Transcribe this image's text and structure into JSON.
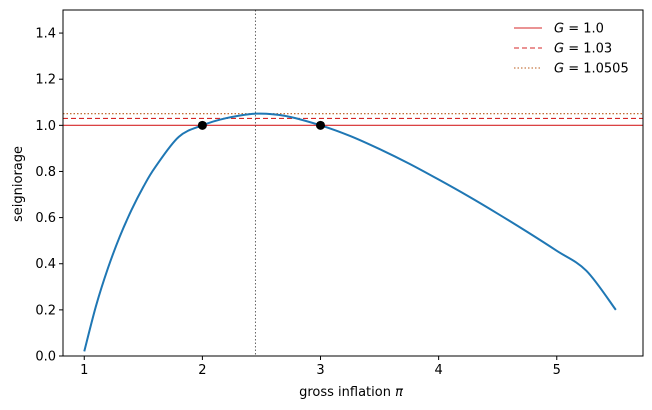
{
  "chart_data": {
    "type": "line",
    "title": "",
    "xlabel": "gross inflation π",
    "ylabel": "seigniorage",
    "xlim": [
      0.82,
      5.73
    ],
    "ylim": [
      0.0,
      1.5
    ],
    "x_ticks": [
      1,
      2,
      3,
      4,
      5
    ],
    "y_ticks": [
      0.0,
      0.2,
      0.4,
      0.6,
      0.8,
      1.0,
      1.2,
      1.4
    ],
    "grid": false,
    "legend_position": "top-right",
    "series": [
      {
        "kind": "curve",
        "color": "#1f77b4",
        "x": [
          1.0,
          1.1,
          1.2,
          1.3,
          1.4,
          1.5,
          1.6,
          1.8,
          2.0,
          2.2,
          2.449,
          2.7,
          3.0,
          3.25,
          3.5,
          3.75,
          4.0,
          4.25,
          4.5,
          4.75,
          5.0,
          5.25,
          5.5
        ],
        "y": [
          0.02,
          0.218,
          0.38,
          0.517,
          0.633,
          0.733,
          0.818,
          0.95,
          1.0,
          1.031,
          1.0505,
          1.041,
          1.0,
          0.954,
          0.897,
          0.834,
          0.765,
          0.693,
          0.617,
          0.538,
          0.456,
          0.37,
          0.2
        ]
      },
      {
        "kind": "hline",
        "name": "G = 1.0",
        "name_prefix": "G",
        "name_value": "= 1.0",
        "y": 1.0,
        "color": "#d62728",
        "style": "solid"
      },
      {
        "kind": "hline",
        "name": "G = 1.03",
        "name_prefix": "G",
        "name_value": "= 1.03",
        "y": 1.03,
        "color": "#d62728",
        "style": "dashed"
      },
      {
        "kind": "hline",
        "name": "G = 1.0505",
        "name_prefix": "G",
        "name_value": "= 1.0505",
        "y": 1.0505,
        "color": "#b85a1a",
        "style": "dotted"
      },
      {
        "kind": "vline",
        "x": 2.449,
        "color": "#555555",
        "style": "dotted"
      },
      {
        "kind": "points",
        "color": "#000000",
        "x": [
          2.0,
          3.0
        ],
        "y": [
          1.0,
          1.0
        ]
      }
    ]
  }
}
